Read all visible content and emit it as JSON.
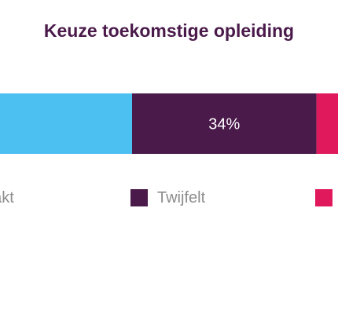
{
  "title": "Keuze toekomstige opleiding",
  "colors": {
    "title": "#4a1a4a",
    "label_on_dark": "#ffffff"
  },
  "chart_data": {
    "type": "bar",
    "orientation": "horizontal-stacked",
    "categories": [
      ""
    ],
    "series": [
      {
        "name": "Gemaakt",
        "values": [
          40
        ],
        "color": "#4bc0f1",
        "data_label": ""
      },
      {
        "name": "Twijfelt",
        "values": [
          34
        ],
        "color": "#4a1a4a",
        "data_label": "34%"
      },
      {
        "name": "",
        "values": [
          26
        ],
        "color": "#e0185c",
        "data_label": ""
      }
    ],
    "legend_labels": [
      "aakt",
      "Twijfelt",
      ""
    ],
    "xlim": [
      0,
      100
    ],
    "grid": false,
    "legend_position": "bottom"
  }
}
